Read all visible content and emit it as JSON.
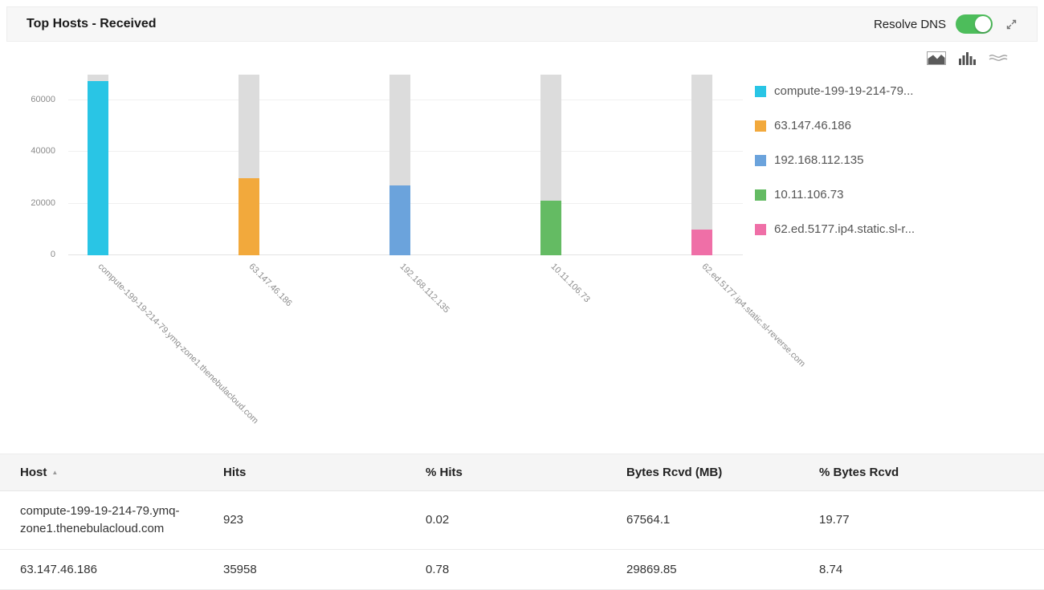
{
  "header": {
    "title": "Top Hosts - Received",
    "resolve_dns_label": "Resolve DNS",
    "resolve_dns_on": true
  },
  "icons": {
    "expand": "expand-icon",
    "chart_types": [
      "area-chart-icon",
      "bar-chart-icon",
      "stream-graph-icon"
    ],
    "sort_caret": "▲"
  },
  "chart_data": {
    "type": "bar",
    "title": "Top Hosts - Received",
    "categories": [
      "compute-199-19-214-79.ymq-zone1.thenebulacloud.com",
      "63.147.46.186",
      "192.168.112.135",
      "10.11.106.73",
      "62.ed.5177.ip4.static.sl-reverse.com"
    ],
    "values": [
      67564.1,
      29869.85,
      27000,
      21000,
      10000
    ],
    "xlabel": "",
    "ylabel": "",
    "ylim": [
      0,
      70000
    ],
    "y_ticks": [
      0,
      20000,
      40000,
      60000
    ],
    "grid": true,
    "legend_position": "right",
    "colors": [
      "#29c5e5",
      "#f2a93c",
      "#6ba3dc",
      "#64bb63",
      "#ef6fa7"
    ],
    "track_color": "#dcdcdc",
    "legend": [
      "compute-199-19-214-79...",
      "63.147.46.186",
      "192.168.112.135",
      "10.11.106.73",
      "62.ed.5177.ip4.static.sl-r..."
    ]
  },
  "table": {
    "columns": [
      "Host",
      "Hits",
      "% Hits",
      "Bytes Rcvd (MB)",
      "% Bytes Rcvd"
    ],
    "column_keys": [
      "host",
      "hits",
      "pct_hits",
      "bytes_rcvd_mb",
      "pct_bytes_rcvd"
    ],
    "sorted_column": "Host",
    "rows": [
      {
        "host": "compute-199-19-214-79.ymq-zone1.thenebulacloud.com",
        "hits": "923",
        "pct_hits": "0.02",
        "bytes_rcvd_mb": "67564.1",
        "pct_bytes_rcvd": "19.77"
      },
      {
        "host": "63.147.46.186",
        "hits": "35958",
        "pct_hits": "0.78",
        "bytes_rcvd_mb": "29869.85",
        "pct_bytes_rcvd": "8.74"
      }
    ]
  }
}
